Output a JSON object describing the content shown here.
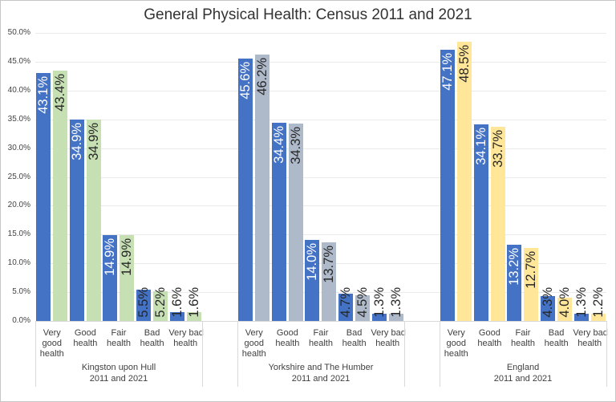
{
  "chart_data": {
    "type": "bar",
    "title": "General Physical Health: Census 2011 and 2021",
    "xlabel": "",
    "ylabel": "",
    "ylim_percent": [
      0,
      50
    ],
    "grid": true,
    "legend": "none",
    "y_ticks": [
      "50.0%",
      "45.0%",
      "40.0%",
      "35.0%",
      "30.0%",
      "25.0%",
      "20.0%",
      "15.0%",
      "10.0%",
      "5.0%",
      "0.0%"
    ],
    "categories": [
      "Very good health",
      "Good health",
      "Fair health",
      "Bad health",
      "Very bad health"
    ],
    "category_label_lines": [
      [
        "Very",
        "good",
        "health"
      ],
      [
        "Good",
        "health"
      ],
      [
        "Fair",
        "health"
      ],
      [
        "Bad",
        "health"
      ],
      [
        "Very bad",
        "health"
      ]
    ],
    "groups": [
      {
        "name": "Kingston upon Hull",
        "sublabel": "2011 and 2021",
        "series": [
          {
            "name": "2011",
            "color": "#4472C4",
            "inside_label_color": "#ffffff",
            "values": [
              43.1,
              34.9,
              14.9,
              5.5,
              1.6
            ],
            "labels": [
              "43.1%",
              "34.9%",
              "14.9%",
              "5.5%",
              "1.6%"
            ]
          },
          {
            "name": "2021",
            "color": "#C6E0B4",
            "inside_label_color": "#262626",
            "values": [
              43.4,
              34.9,
              14.9,
              5.2,
              1.6
            ],
            "labels": [
              "43.4%",
              "34.9%",
              "14.9%",
              "5.2%",
              "1.6%"
            ]
          }
        ]
      },
      {
        "name": "Yorkshire and The Humber",
        "sublabel": "2011 and 2021",
        "series": [
          {
            "name": "2011",
            "color": "#4472C4",
            "inside_label_color": "#ffffff",
            "values": [
              45.6,
              34.4,
              14.0,
              4.7,
              1.3
            ],
            "labels": [
              "45.6%",
              "34.4%",
              "14.0%",
              "4.7%",
              "1.3%"
            ]
          },
          {
            "name": "2021",
            "color": "#AEB9CA",
            "inside_label_color": "#262626",
            "values": [
              46.2,
              34.3,
              13.7,
              4.5,
              1.3
            ],
            "labels": [
              "46.2%",
              "34.3%",
              "13.7%",
              "4.5%",
              "1.3%"
            ]
          }
        ]
      },
      {
        "name": "England",
        "sublabel": "2011 and 2021",
        "series": [
          {
            "name": "2011",
            "color": "#4472C4",
            "inside_label_color": "#ffffff",
            "values": [
              47.1,
              34.1,
              13.2,
              4.3,
              1.3
            ],
            "labels": [
              "47.1%",
              "34.1%",
              "13.2%",
              "4.3%",
              "1.3%"
            ]
          },
          {
            "name": "2021",
            "color": "#FFE699",
            "inside_label_color": "#262626",
            "values": [
              48.5,
              33.7,
              12.7,
              4.0,
              1.2
            ],
            "labels": [
              "48.5%",
              "33.7%",
              "12.7%",
              "4.0%",
              "1.2%"
            ]
          }
        ]
      }
    ],
    "style": {
      "gridline_color": "#eaeaea",
      "axis_color": "#d9d9d9",
      "label_dark_color": "#262626",
      "blue_2011": "#4472C4"
    }
  }
}
